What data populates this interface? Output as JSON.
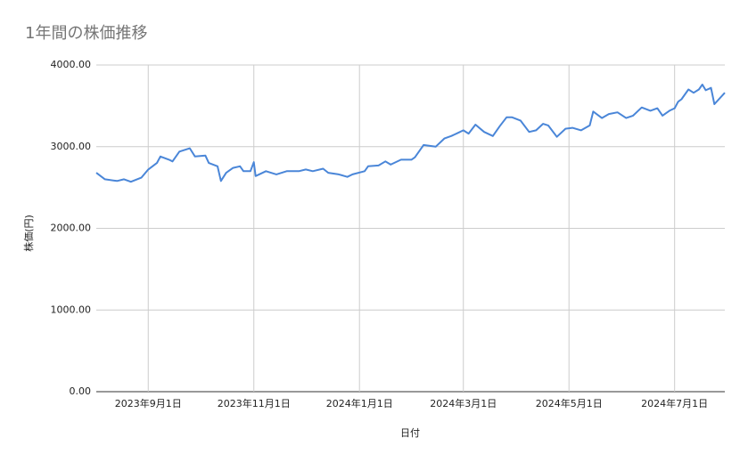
{
  "chart_data": {
    "type": "line",
    "title": "1年間の株価推移",
    "x_label": "日付",
    "y_label": "株価(円)",
    "x": [
      "2023-08-02",
      "2023-08-07",
      "2023-08-14",
      "2023-08-18",
      "2023-08-22",
      "2023-08-28",
      "2023-09-01",
      "2023-09-06",
      "2023-09-08",
      "2023-09-13",
      "2023-09-15",
      "2023-09-19",
      "2023-09-25",
      "2023-09-28",
      "2023-10-04",
      "2023-10-06",
      "2023-10-11",
      "2023-10-13",
      "2023-10-16",
      "2023-10-20",
      "2023-10-24",
      "2023-10-26",
      "2023-10-30",
      "2023-11-01",
      "2023-11-02",
      "2023-11-08",
      "2023-11-14",
      "2023-11-20",
      "2023-11-27",
      "2023-12-01",
      "2023-12-05",
      "2023-12-11",
      "2023-12-14",
      "2023-12-20",
      "2023-12-25",
      "2023-12-28",
      "2024-01-04",
      "2024-01-06",
      "2024-01-12",
      "2024-01-16",
      "2024-01-19",
      "2024-01-25",
      "2024-01-31",
      "2024-02-02",
      "2024-02-07",
      "2024-02-14",
      "2024-02-19",
      "2024-02-23",
      "2024-02-27",
      "2024-03-01",
      "2024-03-04",
      "2024-03-08",
      "2024-03-13",
      "2024-03-18",
      "2024-03-22",
      "2024-03-26",
      "2024-03-29",
      "2024-04-03",
      "2024-04-08",
      "2024-04-12",
      "2024-04-16",
      "2024-04-19",
      "2024-04-24",
      "2024-04-29",
      "2024-05-03",
      "2024-05-08",
      "2024-05-13",
      "2024-05-15",
      "2024-05-20",
      "2024-05-24",
      "2024-05-29",
      "2024-06-03",
      "2024-06-07",
      "2024-06-12",
      "2024-06-17",
      "2024-06-21",
      "2024-06-24",
      "2024-06-28",
      "2024-07-01",
      "2024-07-03",
      "2024-07-05",
      "2024-07-09",
      "2024-07-12",
      "2024-07-15",
      "2024-07-17",
      "2024-07-19",
      "2024-07-22",
      "2024-07-24",
      "2024-07-30"
    ],
    "series": [
      {
        "name": "株価",
        "color": "#4a86d8",
        "values": [
          2680,
          2600,
          2580,
          2600,
          2570,
          2620,
          2720,
          2800,
          2880,
          2840,
          2820,
          2940,
          2980,
          2880,
          2890,
          2800,
          2760,
          2580,
          2680,
          2740,
          2760,
          2700,
          2700,
          2810,
          2640,
          2700,
          2660,
          2700,
          2700,
          2720,
          2700,
          2730,
          2680,
          2660,
          2630,
          2660,
          2700,
          2760,
          2770,
          2820,
          2780,
          2840,
          2840,
          2870,
          3020,
          3000,
          3100,
          3130,
          3170,
          3200,
          3160,
          3270,
          3180,
          3130,
          3250,
          3360,
          3360,
          3320,
          3180,
          3200,
          3280,
          3260,
          3120,
          3220,
          3230,
          3200,
          3260,
          3430,
          3350,
          3400,
          3420,
          3350,
          3380,
          3480,
          3440,
          3470,
          3380,
          3440,
          3470,
          3550,
          3580,
          3700,
          3660,
          3700,
          3760,
          3690,
          3720,
          3520,
          3660
        ]
      }
    ],
    "xlim": [
      "2023-08-02",
      "2024-07-30"
    ],
    "xticks": [
      {
        "value": "2023-09-01",
        "label": "2023年9月1日"
      },
      {
        "value": "2023-11-01",
        "label": "2023年11月1日"
      },
      {
        "value": "2024-01-01",
        "label": "2024年1月1日"
      },
      {
        "value": "2024-03-01",
        "label": "2024年3月1日"
      },
      {
        "value": "2024-05-01",
        "label": "2024年5月1日"
      },
      {
        "value": "2024-07-01",
        "label": "2024年7月1日"
      }
    ],
    "ylim": [
      0,
      4000
    ],
    "yticks": [
      {
        "value": 0,
        "label": "0.00"
      },
      {
        "value": 1000,
        "label": "1000.00"
      },
      {
        "value": 2000,
        "label": "2000.00"
      },
      {
        "value": 3000,
        "label": "3000.00"
      },
      {
        "value": 4000,
        "label": "4000.00"
      }
    ],
    "grid": true
  }
}
